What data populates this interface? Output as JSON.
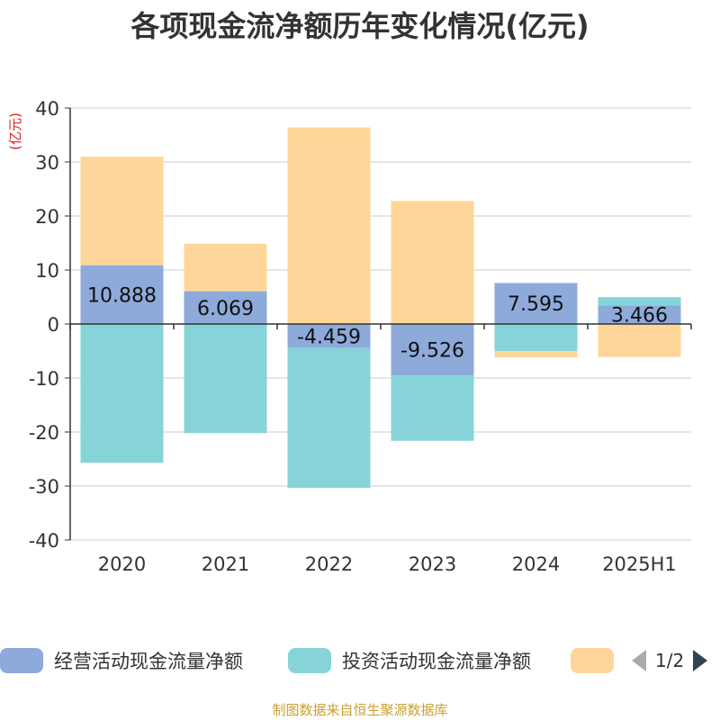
{
  "title": "各项现金流净额历年变化情况(亿元)",
  "source": "制图数据来自恒生聚源数据库",
  "legend": {
    "items": [
      {
        "label": "经营活动现金流量净额",
        "color": "#8eaadb"
      },
      {
        "label": "投资活动现金流量净额",
        "color": "#86d4d7"
      },
      {
        "label": "",
        "color": "#ffd699"
      }
    ],
    "page_text": "1/2"
  },
  "chart_data": {
    "type": "bar",
    "stacked": true,
    "title": "各项现金流净额历年变化情况(亿元)",
    "ylabel": "(亿元)",
    "ylim": [
      -40,
      40
    ],
    "yticks": [
      40,
      30,
      20,
      10,
      0,
      -10,
      -20,
      -30,
      -40
    ],
    "grid": true,
    "legend_position": "bottom",
    "categories": [
      "2020",
      "2021",
      "2022",
      "2023",
      "2024",
      "2025H1"
    ],
    "series": [
      {
        "name": "经营活动现金流量净额",
        "color": "#8eaadb",
        "values": [
          10.888,
          6.069,
          -4.459,
          -9.526,
          7.595,
          3.466
        ],
        "labels": [
          "10.888",
          "6.069",
          "-4.459",
          "-9.526",
          "7.595",
          "3.466"
        ]
      },
      {
        "name": "投资活动现金流量净额",
        "color": "#86d4d7",
        "values": [
          -25.7,
          -20.2,
          -25.9,
          -12.1,
          -5.0,
          1.5
        ]
      },
      {
        "color": "#ffd699",
        "values": [
          20.1,
          8.8,
          36.4,
          22.8,
          -1.2,
          -6.1
        ]
      }
    ]
  }
}
